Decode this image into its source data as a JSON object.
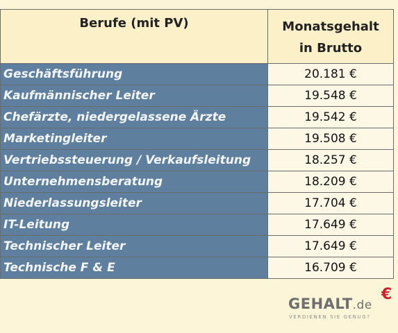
{
  "table": {
    "header": {
      "job_label": "Berufe (mit PV)",
      "salary_label_line1": "Monatsgehalt",
      "salary_label_line2": "in Brutto"
    },
    "rows": [
      {
        "job": "Geschäftsführung",
        "salary": "20.181 €"
      },
      {
        "job": "Kaufmännischer Leiter",
        "salary": "19.548 €"
      },
      {
        "job": "Chefärzte, niedergelassene Ärzte",
        "salary": "19.542 €"
      },
      {
        "job": "Marketingleiter",
        "salary": "19.508 €"
      },
      {
        "job": "Vertriebssteuerung / Verkaufsleitung",
        "salary": "18.257 €"
      },
      {
        "job": "Unternehmensberatung",
        "salary": "18.209 €"
      },
      {
        "job": "Niederlassungsleiter",
        "salary": "17.704 €"
      },
      {
        "job": "IT-Leitung",
        "salary": "17.649 €"
      },
      {
        "job": "Technischer Leiter",
        "salary": "17.649 €"
      },
      {
        "job": "Technische F & E",
        "salary": "16.709 €"
      }
    ]
  },
  "logo": {
    "word": "GEHALT",
    "suffix": ".de",
    "euro": "€",
    "tagline": "VERDIENEN SIE GENUG?"
  }
}
